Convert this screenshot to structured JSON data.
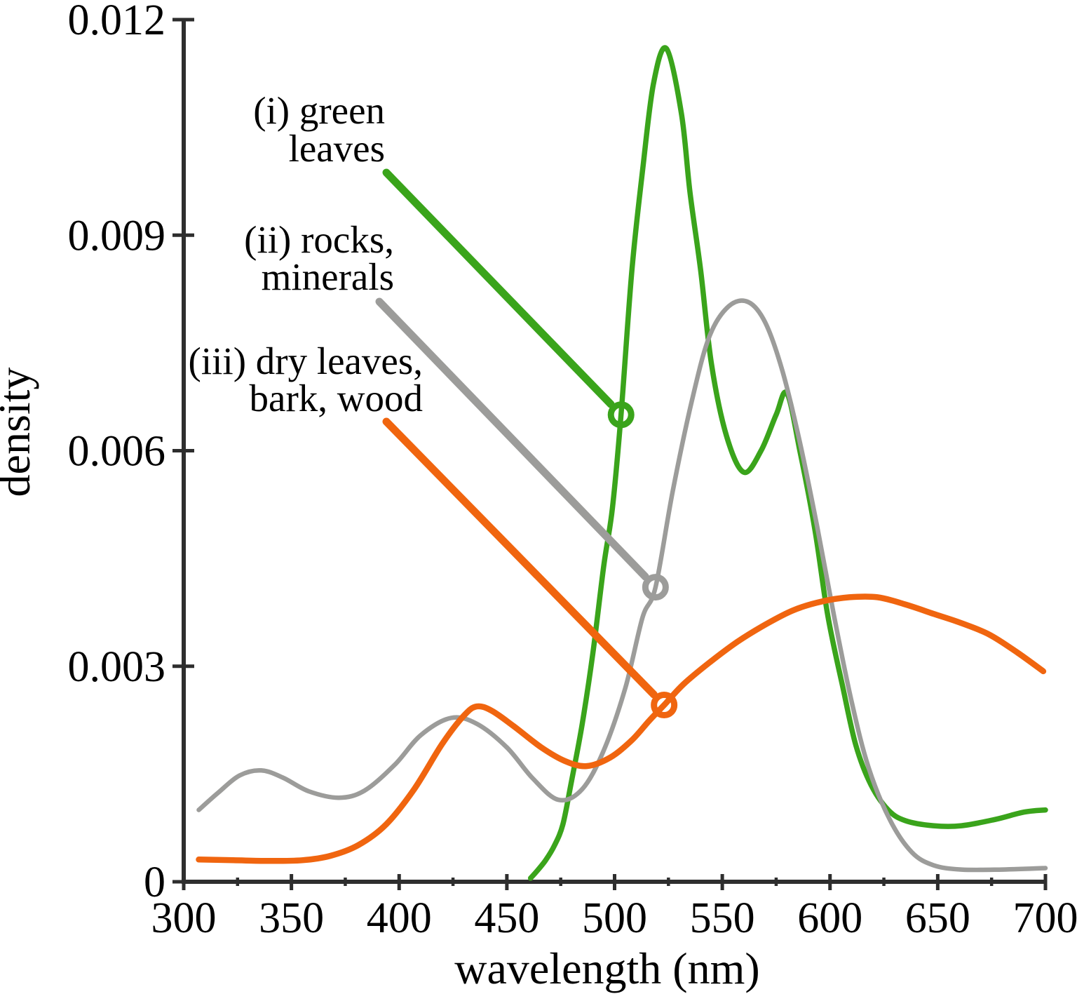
{
  "figure": {
    "background": "#ffffff",
    "axis_color": "#2e2e2e",
    "text_color": "#000000"
  },
  "chart_data": {
    "type": "line",
    "title": "",
    "xlabel": "wavelength (nm)",
    "ylabel": "density",
    "xlim": [
      300,
      700
    ],
    "ylim": [
      0,
      0.012
    ],
    "grid": false,
    "legend_position": "upper-left text annotations with leader lines and circle markers",
    "x_major_ticks": [
      300,
      350,
      400,
      450,
      500,
      550,
      600,
      650,
      700
    ],
    "x_major_tick_labels": [
      "300",
      "350",
      "400",
      "450",
      "500",
      "550",
      "600",
      "650",
      "700"
    ],
    "x_minor_ticks": [
      325,
      375,
      425,
      475,
      525,
      575,
      625,
      675
    ],
    "y_ticks": [
      0,
      0.003,
      0.006,
      0.009,
      0.012
    ],
    "y_tick_labels": [
      "0",
      "0.003",
      "0.006",
      "0.009",
      "0.012"
    ],
    "series": [
      {
        "name": "(i) green leaves",
        "label_lines": [
          "(i) green",
          "leaves"
        ],
        "color": "#3aa41b",
        "marker_at": {
          "x": 503,
          "y": 0.0065
        },
        "points": [
          [
            461,
            5e-05
          ],
          [
            464,
            0.00015
          ],
          [
            468,
            0.0003
          ],
          [
            472,
            0.0005
          ],
          [
            476,
            0.0008
          ],
          [
            480,
            0.0014
          ],
          [
            485,
            0.0022
          ],
          [
            490,
            0.0032
          ],
          [
            495,
            0.0044
          ],
          [
            499,
            0.0052
          ],
          [
            503,
            0.0065
          ],
          [
            508,
            0.0085
          ],
          [
            513,
            0.0099
          ],
          [
            518,
            0.0111
          ],
          [
            524,
            0.0116
          ],
          [
            531,
            0.0107
          ],
          [
            535,
            0.0096
          ],
          [
            540,
            0.0085
          ],
          [
            545,
            0.0072
          ],
          [
            552,
            0.0062
          ],
          [
            560,
            0.0057
          ],
          [
            568,
            0.006
          ],
          [
            575,
            0.0065
          ],
          [
            580,
            0.0068
          ],
          [
            586,
            0.006
          ],
          [
            593,
            0.0049
          ],
          [
            599,
            0.0037
          ],
          [
            606,
            0.0027
          ],
          [
            612,
            0.0019
          ],
          [
            619,
            0.00135
          ],
          [
            627,
            0.001
          ],
          [
            635,
            0.00085
          ],
          [
            648,
            0.00078
          ],
          [
            661,
            0.00078
          ],
          [
            677,
            0.00087
          ],
          [
            690,
            0.00097
          ],
          [
            700,
            0.001
          ]
        ]
      },
      {
        "name": "(ii) rocks, minerals",
        "label_lines": [
          "(ii) rocks,",
          "minerals"
        ],
        "color": "#9c9c9a",
        "marker_at": {
          "x": 519,
          "y": 0.0041
        },
        "points": [
          [
            307,
            0.001
          ],
          [
            316,
            0.00124
          ],
          [
            326,
            0.00148
          ],
          [
            336,
            0.00155
          ],
          [
            346,
            0.00145
          ],
          [
            358,
            0.00126
          ],
          [
            372,
            0.00117
          ],
          [
            384,
            0.00127
          ],
          [
            398,
            0.00163
          ],
          [
            410,
            0.00204
          ],
          [
            424,
            0.00228
          ],
          [
            436,
            0.0022
          ],
          [
            450,
            0.00187
          ],
          [
            462,
            0.00144
          ],
          [
            474,
            0.00114
          ],
          [
            485,
            0.00129
          ],
          [
            495,
            0.00183
          ],
          [
            505,
            0.0027
          ],
          [
            513,
            0.00368
          ],
          [
            519,
            0.0041
          ],
          [
            527,
            0.00544
          ],
          [
            536,
            0.00671
          ],
          [
            544,
            0.00759
          ],
          [
            553,
            0.00801
          ],
          [
            562,
            0.00807
          ],
          [
            570,
            0.00778
          ],
          [
            578,
            0.0071
          ],
          [
            586,
            0.00612
          ],
          [
            594,
            0.00495
          ],
          [
            602,
            0.00368
          ],
          [
            610,
            0.00251
          ],
          [
            618,
            0.00158
          ],
          [
            628,
            0.00085
          ],
          [
            638,
            0.00041
          ],
          [
            648,
            0.00023
          ],
          [
            661,
            0.00017
          ],
          [
            680,
            0.00017
          ],
          [
            700,
            0.00019
          ]
        ]
      },
      {
        "name": "(iii) dry leaves, bark, wood",
        "label_lines": [
          "(iii) dry leaves,",
          "bark, wood"
        ],
        "color": "#f0650f",
        "marker_at": {
          "x": 523,
          "y": 0.00246
        },
        "points": [
          [
            307,
            0.00031
          ],
          [
            323,
            0.0003
          ],
          [
            339,
            0.00029
          ],
          [
            355,
            0.0003
          ],
          [
            368,
            0.00036
          ],
          [
            381,
            0.00051
          ],
          [
            394,
            0.0008
          ],
          [
            407,
            0.00129
          ],
          [
            420,
            0.00192
          ],
          [
            430,
            0.00231
          ],
          [
            436,
            0.00244
          ],
          [
            443,
            0.00238
          ],
          [
            453,
            0.00217
          ],
          [
            466,
            0.00187
          ],
          [
            477,
            0.00168
          ],
          [
            487,
            0.00161
          ],
          [
            498,
            0.00173
          ],
          [
            508,
            0.00197
          ],
          [
            516,
            0.00224
          ],
          [
            523,
            0.00246
          ],
          [
            532,
            0.00275
          ],
          [
            544,
            0.00305
          ],
          [
            557,
            0.00334
          ],
          [
            570,
            0.00358
          ],
          [
            583,
            0.00378
          ],
          [
            596,
            0.0039
          ],
          [
            609,
            0.00396
          ],
          [
            622,
            0.00396
          ],
          [
            635,
            0.00386
          ],
          [
            648,
            0.00373
          ],
          [
            661,
            0.0036
          ],
          [
            674,
            0.00344
          ],
          [
            687,
            0.00319
          ],
          [
            699,
            0.00293
          ]
        ]
      }
    ]
  }
}
